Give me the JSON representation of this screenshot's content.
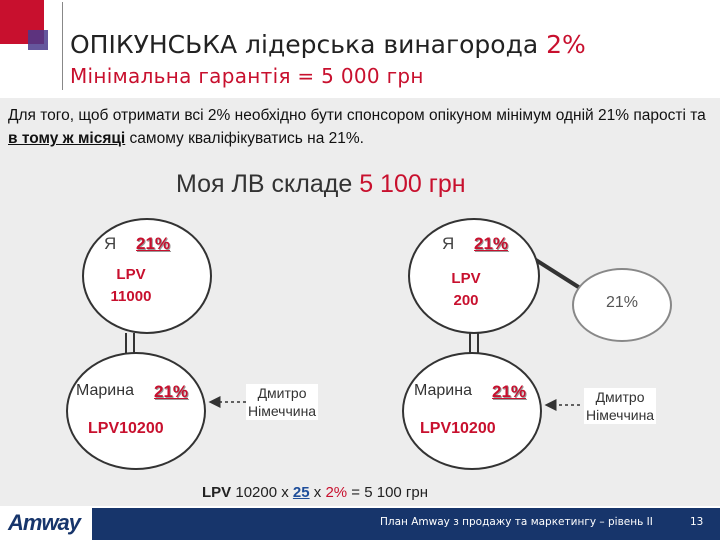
{
  "header": {
    "title": "ОПІКУНСЬКА лідерська винагорода",
    "title_pct": "2%",
    "subtitle": "Мінімальна гарантія = 5 000 грн"
  },
  "intro": {
    "part1": "Для того, щоб отримати всі 2% необхідно бути спонсором опікуном мінімум одній 21% парості та ",
    "emphasis": "в тому ж місяці",
    "part2": " самому кваліфікуватись на 21%."
  },
  "headline": {
    "text": "Моя ЛВ складе",
    "amount": "5 100 грн"
  },
  "left_diagram": {
    "me_label": "Я",
    "me_pct": "21%",
    "me_lpv_1": "LPV",
    "me_lpv_2": "11000",
    "marina_label": "Марина",
    "marina_pct": "21%",
    "marina_lpv": "LPV10200",
    "dmytro_1": "Дмитро",
    "dmytro_2": "Німеччина"
  },
  "right_diagram": {
    "me_label": "Я",
    "me_pct": "21%",
    "me_lpv_1": "LPV",
    "me_lpv_2": "200",
    "side_pct": "21%",
    "marina_label": "Марина",
    "marina_pct": "21%",
    "marina_lpv": "LPV10200",
    "dmytro_1": "Дмитро",
    "dmytro_2": "Німеччина"
  },
  "formula": {
    "lpv": "LPV",
    "part1": " 10200 x ",
    "rate": "25",
    "part2": " x ",
    "pct": "2%",
    "part3": " = 5 100 грн"
  },
  "footer": {
    "logo": "Amway",
    "text": "План Amway з продажу та маркетингу – рівень II",
    "page": "13"
  },
  "colors": {
    "accent_red": "#c8102e",
    "navy": "#17356b"
  }
}
